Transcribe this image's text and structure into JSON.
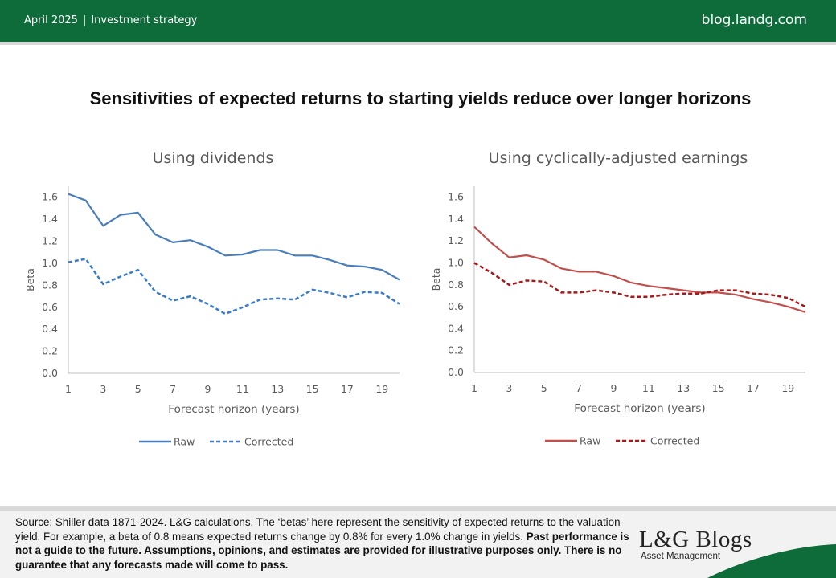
{
  "header": {
    "date": "April 2025",
    "separator": "|",
    "category": "Investment strategy",
    "site": "blog.landg.com"
  },
  "title": "Sensitivities of expected returns to starting yields reduce over longer horizons",
  "chart_data": [
    {
      "type": "line",
      "title": "Using dividends",
      "xlabel": "Forecast horizon (years)",
      "ylabel": "Beta",
      "x": [
        1,
        2,
        3,
        4,
        5,
        6,
        7,
        8,
        9,
        10,
        11,
        12,
        13,
        14,
        15,
        16,
        17,
        18,
        19,
        20
      ],
      "xticks": [
        "1",
        "3",
        "5",
        "7",
        "9",
        "11",
        "13",
        "15",
        "17",
        "19"
      ],
      "yticks": [
        "0.0",
        "0.2",
        "0.4",
        "0.6",
        "0.8",
        "1.0",
        "1.2",
        "1.4",
        "1.6"
      ],
      "ylim": [
        0,
        1.7
      ],
      "grid": false,
      "legend_position": "bottom",
      "series": [
        {
          "name": "Raw",
          "style": "solid",
          "color": "#4a7ebb",
          "values": [
            1.63,
            1.57,
            1.34,
            1.44,
            1.46,
            1.26,
            1.19,
            1.21,
            1.15,
            1.07,
            1.08,
            1.12,
            1.12,
            1.07,
            1.07,
            1.03,
            0.98,
            0.97,
            0.94,
            0.85
          ]
        },
        {
          "name": "Corrected",
          "style": "dashed",
          "color": "#3a7bc8",
          "values": [
            1.01,
            1.04,
            0.81,
            0.88,
            0.94,
            0.74,
            0.66,
            0.7,
            0.63,
            0.54,
            0.6,
            0.67,
            0.68,
            0.67,
            0.76,
            0.73,
            0.69,
            0.74,
            0.73,
            0.63
          ]
        }
      ]
    },
    {
      "type": "line",
      "title": "Using cyclically-adjusted earnings",
      "xlabel": "Forecast horizon (years)",
      "ylabel": "Beta",
      "x": [
        1,
        2,
        3,
        4,
        5,
        6,
        7,
        8,
        9,
        10,
        11,
        12,
        13,
        14,
        15,
        16,
        17,
        18,
        19,
        20
      ],
      "xticks": [
        "1",
        "3",
        "5",
        "7",
        "9",
        "11",
        "13",
        "15",
        "17",
        "19"
      ],
      "yticks": [
        "0.0",
        "0.2",
        "0.4",
        "0.6",
        "0.8",
        "1.0",
        "1.2",
        "1.4",
        "1.6"
      ],
      "ylim": [
        0,
        1.7
      ],
      "grid": false,
      "legend_position": "bottom",
      "series": [
        {
          "name": "Raw",
          "style": "solid",
          "color": "#c0504d",
          "values": [
            1.33,
            1.18,
            1.05,
            1.07,
            1.03,
            0.95,
            0.92,
            0.92,
            0.88,
            0.82,
            0.79,
            0.77,
            0.75,
            0.73,
            0.73,
            0.71,
            0.67,
            0.64,
            0.6,
            0.55
          ]
        },
        {
          "name": "Corrected",
          "style": "dashed",
          "color": "#a8191c",
          "values": [
            1.0,
            0.91,
            0.8,
            0.84,
            0.83,
            0.73,
            0.73,
            0.75,
            0.73,
            0.69,
            0.69,
            0.71,
            0.72,
            0.72,
            0.75,
            0.75,
            0.72,
            0.71,
            0.68,
            0.6
          ]
        }
      ]
    }
  ],
  "footer": {
    "source_text": "Source: Shiller data 1871-2024. L&G calculations. The ‘betas’ here represent the sensitivity of expected returns to the valuation yield. For example, a beta of 0.8 means expected returns change by 0.8% for every 1.0% change in yields.",
    "disclaimer": "Past performance is not a guide to the future. Assumptions, opinions, and estimates are provided for illustrative purposes only. There is no guarantee that any forecasts made will come to pass.",
    "logo_text": "L&G Blogs",
    "logo_sub": "Asset Management",
    "accent_color": "#0e6b3a"
  }
}
